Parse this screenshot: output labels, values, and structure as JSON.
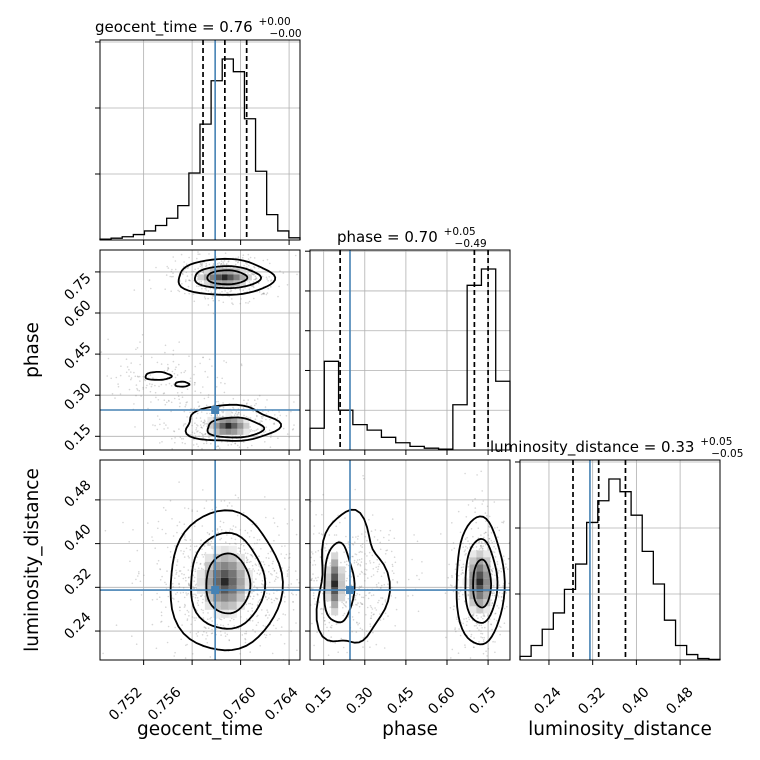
{
  "chart_data": {
    "type": "corner",
    "truth_color": "#4682b4",
    "hist_color": "#000000",
    "parameters": [
      "geocent_time",
      "phase",
      "luminosity_distance"
    ],
    "titles": [
      {
        "param": "geocent_time",
        "prefix": "geocent_time = 0.76",
        "plus": "+0.00",
        "minus": "−0.00"
      },
      {
        "param": "phase",
        "prefix": "phase = 0.70",
        "plus": "+0.05",
        "minus": "−0.49"
      },
      {
        "param": "luminosity_distance",
        "prefix": "luminosity_distance = 0.33",
        "plus": "+0.05",
        "minus": "−0.05"
      }
    ],
    "ticks": {
      "geocent_time": [
        "0.752",
        "0.756",
        "0.760",
        "0.764"
      ],
      "phase_y": [
        "0.75",
        "0.60",
        "0.45",
        "0.30",
        "0.15"
      ],
      "phase_x": [
        "0.15",
        "0.30",
        "0.45",
        "0.60",
        "0.75"
      ],
      "luminosity_distance_y": [
        "0.48",
        "0.40",
        "0.32",
        "0.24"
      ],
      "luminosity_distance_x": [
        "0.24",
        "0.32",
        "0.40",
        "0.48"
      ]
    },
    "ranges": {
      "geocent_time": [
        0.7484,
        0.7649
      ],
      "phase": [
        0.1,
        0.83
      ],
      "luminosity_distance": [
        0.187,
        0.553
      ]
    },
    "truths": {
      "geocent_time": 0.7579,
      "phase": 0.246,
      "luminosity_distance": 0.315
    },
    "quantiles": {
      "geocent_time": [
        0.7569,
        0.7587,
        0.7605
      ],
      "phase": [
        0.21,
        0.7,
        0.75
      ],
      "luminosity_distance": [
        0.284,
        0.331,
        0.38
      ]
    },
    "hist_geocent_time": [
      0.005,
      0.01,
      0.018,
      0.03,
      0.05,
      0.08,
      0.12,
      0.19,
      0.37,
      0.64,
      0.88,
      1.0,
      0.93,
      0.67,
      0.38,
      0.14,
      0.05,
      0.012
    ],
    "hist_phase": [
      0.12,
      0.49,
      0.22,
      0.14,
      0.11,
      0.07,
      0.04,
      0.02,
      0.01,
      0.005,
      0.25,
      0.91,
      1.0,
      0.38
    ],
    "hist_luminosity_distance": [
      0.02,
      0.08,
      0.17,
      0.26,
      0.39,
      0.53,
      0.76,
      0.88,
      1.0,
      0.93,
      0.8,
      0.6,
      0.42,
      0.22,
      0.08,
      0.03,
      0.008,
      0.003
    ],
    "axis_titles": {
      "x": [
        "geocent_time",
        "phase",
        "luminosity_distance"
      ],
      "y": [
        "phase",
        "luminosity_distance"
      ]
    }
  }
}
